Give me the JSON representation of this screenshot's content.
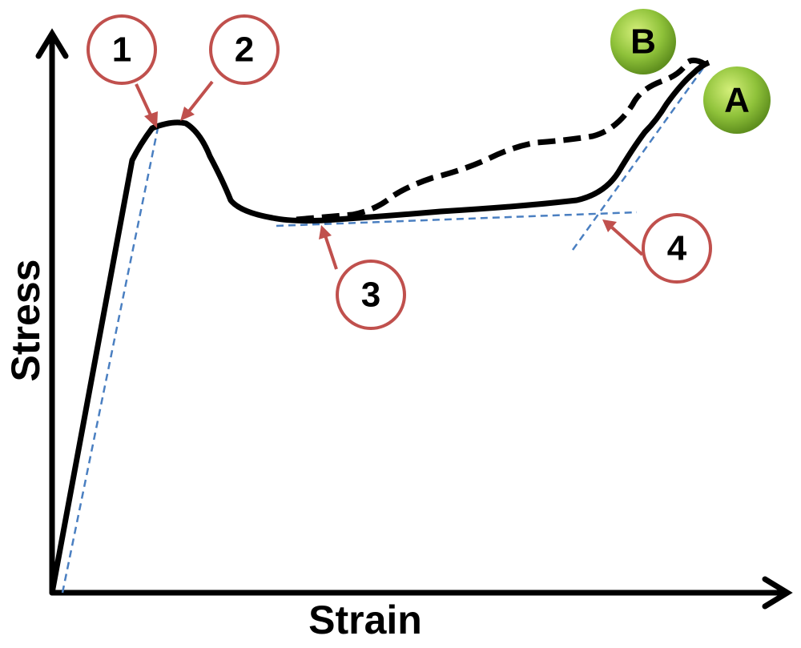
{
  "axes": {
    "y_label": "Stress",
    "x_label": "Strain"
  },
  "callouts": [
    "1",
    "2",
    "3",
    "4"
  ],
  "curves": [
    "A",
    "B"
  ]
}
